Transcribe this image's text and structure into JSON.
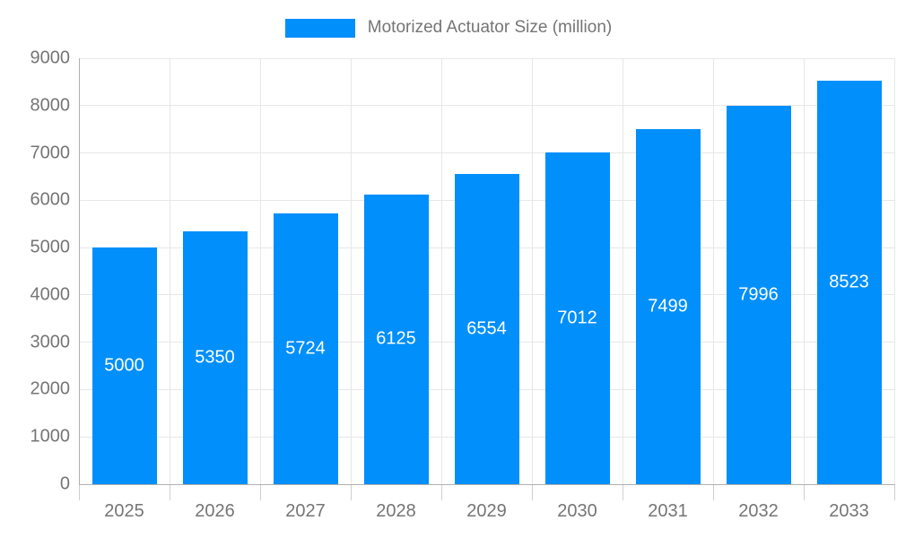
{
  "chart_data": {
    "type": "bar",
    "title": "",
    "legend": "Motorized Actuator Size (million)",
    "legend_position": "top-center",
    "categories": [
      "2025",
      "2026",
      "2027",
      "2028",
      "2029",
      "2030",
      "2031",
      "2032",
      "2033"
    ],
    "values": [
      5000,
      5350,
      5724,
      6125,
      6554,
      7012,
      7499,
      7996,
      8523
    ],
    "value_labels_inside_bars": true,
    "xlabel": "",
    "ylabel": "",
    "ylim": [
      0,
      9000
    ],
    "ytick_step": 1000,
    "yticks": [
      0,
      1000,
      2000,
      3000,
      4000,
      5000,
      6000,
      7000,
      8000,
      9000
    ],
    "grid": true,
    "colors": {
      "bar": "#008FFB",
      "grid": "#e7e7e7",
      "axis": "#b0b0b0",
      "tick": "#cfcfcf",
      "axis_text": "#757575",
      "value_text": "#ffffff",
      "background": "#ffffff"
    }
  }
}
